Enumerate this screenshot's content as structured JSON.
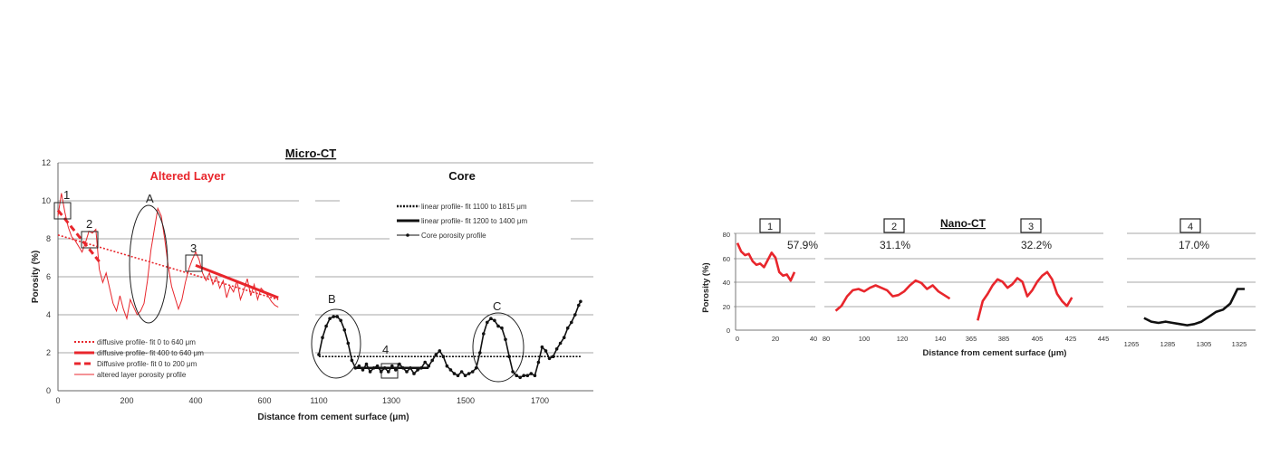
{
  "micro_ct": {
    "title": "Micro-CT",
    "xlabel": "Distance from cement surface (μm)",
    "ylabel": "Porosity (%)",
    "yticks": [
      "0",
      "2",
      "4",
      "6",
      "8",
      "10",
      "12"
    ],
    "altered_title": "Altered Layer",
    "core_title": "Core",
    "altered_xticks": [
      "0",
      "200",
      "400",
      "600"
    ],
    "core_xticks": [
      "1100",
      "1300",
      "1500",
      "1700"
    ],
    "altered_legend": [
      "diffusive profile- fit 0 to 640 μm",
      "diffusive profile- fit 400 to 640 μm",
      "Diffusive profile- fit 0 to 200 μm",
      "altered layer porosity profile"
    ],
    "core_legend": [
      "linear profile- fit 1100 to 1815 μm",
      "linear profile- fit 1200 to 1400 μm",
      "Core porosity profile"
    ],
    "annotations": [
      "1",
      "2",
      "3",
      "A",
      "B",
      "4",
      "C"
    ]
  },
  "nano_ct": {
    "title": "Nano-CT",
    "xlabel": "Distance from cement surface (μm)",
    "ylabel": "Porosity (%)",
    "yticks": [
      "0",
      "20",
      "40",
      "60",
      "80"
    ],
    "panels": [
      {
        "label": "1",
        "value": "57.9%",
        "xticks": [
          "0",
          "20",
          "40"
        ]
      },
      {
        "label": "2",
        "value": "31.1%",
        "xticks": [
          "80",
          "100",
          "120",
          "140"
        ]
      },
      {
        "label": "3",
        "value": "32.2%",
        "xticks": [
          "365",
          "385",
          "405",
          "425",
          "445"
        ]
      },
      {
        "label": "4",
        "value": "17.0%",
        "xticks": [
          "1265",
          "1285",
          "1305",
          "1325"
        ]
      }
    ]
  },
  "colors": {
    "altered": "#e8262c",
    "core": "#111111",
    "grid": "#8a8a8a"
  },
  "chart_data": [
    {
      "type": "line",
      "title": "Micro-CT — Altered Layer",
      "xlabel": "Distance from cement surface (μm)",
      "ylabel": "Porosity (%)",
      "xlim": [
        0,
        700
      ],
      "ylim": [
        0,
        12
      ],
      "series": [
        {
          "name": "altered layer porosity profile",
          "color": "#e8262c",
          "x": [
            0,
            10,
            20,
            30,
            40,
            50,
            60,
            70,
            80,
            90,
            100,
            110,
            120,
            130,
            140,
            150,
            160,
            170,
            180,
            190,
            200,
            210,
            220,
            230,
            240,
            250,
            260,
            270,
            280,
            290,
            300,
            310,
            320,
            330,
            340,
            350,
            360,
            370,
            380,
            390,
            400,
            410,
            420,
            430,
            440,
            450,
            460,
            470,
            480,
            490,
            500,
            510,
            520,
            530,
            540,
            550,
            560,
            570,
            580,
            590,
            600,
            610,
            620,
            630,
            640
          ],
          "y": [
            9.2,
            10.4,
            9.4,
            8.6,
            8.1,
            7.9,
            7.6,
            7.3,
            7.8,
            8.4,
            8.3,
            8.5,
            6.4,
            5.7,
            6.2,
            5.4,
            4.6,
            4.2,
            5.0,
            4.3,
            3.8,
            4.8,
            4.4,
            4.0,
            4.2,
            4.6,
            5.8,
            7.4,
            8.5,
            9.6,
            9.2,
            8.0,
            6.6,
            5.5,
            4.9,
            4.3,
            4.8,
            5.7,
            6.4,
            6.9,
            7.3,
            6.9,
            6.2,
            5.8,
            6.2,
            5.6,
            6.0,
            5.4,
            5.8,
            4.9,
            5.5,
            5.2,
            5.8,
            4.8,
            5.3,
            5.9,
            5.0,
            5.6,
            4.8,
            5.4,
            5.2,
            5.0,
            4.7,
            4.5,
            4.4
          ]
        },
        {
          "name": "diffusive profile- fit 0 to 640 μm",
          "color": "#e8262c",
          "x": [
            0,
            640
          ],
          "y": [
            8.2,
            4.8
          ]
        },
        {
          "name": "diffusive profile- fit 400 to 640 μm",
          "color": "#e8262c",
          "x": [
            400,
            640
          ],
          "y": [
            6.6,
            4.9
          ]
        },
        {
          "name": "Diffusive profile- fit 0 to 200 μm",
          "color": "#e8262c",
          "x": [
            0,
            120
          ],
          "y": [
            9.5,
            6.8
          ]
        }
      ]
    },
    {
      "type": "line",
      "title": "Micro-CT — Core",
      "xlabel": "Distance from cement surface (μm)",
      "ylabel": "Porosity (%)",
      "xlim": [
        1100,
        1850
      ],
      "ylim": [
        0,
        12
      ],
      "series": [
        {
          "name": "Core porosity profile",
          "color": "#111111",
          "x": [
            1100,
            1110,
            1120,
            1130,
            1140,
            1150,
            1160,
            1170,
            1180,
            1190,
            1200,
            1210,
            1220,
            1230,
            1240,
            1250,
            1260,
            1270,
            1280,
            1290,
            1300,
            1310,
            1320,
            1330,
            1340,
            1350,
            1360,
            1370,
            1380,
            1390,
            1400,
            1410,
            1420,
            1430,
            1440,
            1450,
            1460,
            1470,
            1480,
            1490,
            1500,
            1510,
            1520,
            1530,
            1540,
            1550,
            1560,
            1570,
            1580,
            1590,
            1600,
            1610,
            1620,
            1630,
            1640,
            1650,
            1660,
            1670,
            1680,
            1690,
            1700,
            1710,
            1720,
            1730,
            1740,
            1750,
            1760,
            1770,
            1780,
            1790,
            1800,
            1810,
            1815
          ],
          "y": [
            1.9,
            2.8,
            3.4,
            3.8,
            3.9,
            3.9,
            3.7,
            3.2,
            2.5,
            1.6,
            1.2,
            1.3,
            1.1,
            1.4,
            1.0,
            1.2,
            1.3,
            1.0,
            1.2,
            1.0,
            1.3,
            1.1,
            1.4,
            1.2,
            1.0,
            1.2,
            0.9,
            1.1,
            1.2,
            1.5,
            1.3,
            1.6,
            1.9,
            2.1,
            1.8,
            1.3,
            1.1,
            0.9,
            0.8,
            1.0,
            0.8,
            0.9,
            1.0,
            1.2,
            2.0,
            3.0,
            3.6,
            3.8,
            3.7,
            3.4,
            3.3,
            2.7,
            1.8,
            1.0,
            0.8,
            0.7,
            0.8,
            0.8,
            0.9,
            0.8,
            1.5,
            2.3,
            2.1,
            1.7,
            1.8,
            2.2,
            2.5,
            2.8,
            3.3,
            3.6,
            4.0,
            4.5,
            4.7
          ]
        },
        {
          "name": "linear profile- fit 1100 to 1815 μm",
          "color": "#111111",
          "x": [
            1100,
            1815
          ],
          "y": [
            1.8,
            1.8
          ]
        },
        {
          "name": "linear profile- fit 1200 to 1400 μm",
          "color": "#111111",
          "x": [
            1200,
            1400
          ],
          "y": [
            1.2,
            1.2
          ]
        }
      ]
    },
    {
      "type": "line",
      "title": "Nano-CT 1",
      "ylabel": "Porosity (%)",
      "xlim": [
        0,
        40
      ],
      "ylim": [
        0,
        80
      ],
      "series": [
        {
          "color": "#e8262c",
          "x": [
            0,
            2,
            4,
            6,
            8,
            10,
            12,
            14,
            16,
            18,
            20,
            22,
            24,
            26,
            28,
            30
          ],
          "y": [
            72,
            65,
            62,
            63,
            57,
            54,
            55,
            52,
            58,
            64,
            60,
            48,
            45,
            46,
            41,
            48
          ]
        }
      ]
    },
    {
      "type": "line",
      "title": "Nano-CT 2",
      "xlim": [
        80,
        150
      ],
      "ylim": [
        0,
        80
      ],
      "series": [
        {
          "color": "#e8262c",
          "x": [
            85,
            88,
            91,
            94,
            97,
            100,
            103,
            106,
            109,
            112,
            115,
            118,
            121,
            124,
            127,
            130,
            133,
            136,
            139,
            142,
            145
          ],
          "y": [
            16,
            20,
            28,
            33,
            34,
            32,
            35,
            37,
            35,
            33,
            28,
            29,
            32,
            37,
            41,
            39,
            34,
            37,
            32,
            29,
            26
          ]
        }
      ]
    },
    {
      "type": "line",
      "title": "Nano-CT 3",
      "xlim": [
        365,
        445
      ],
      "ylim": [
        0,
        80
      ],
      "series": [
        {
          "color": "#e8262c",
          "x": [
            369,
            372,
            375,
            378,
            381,
            384,
            387,
            390,
            393,
            396,
            399,
            402,
            405,
            408,
            411,
            414,
            417,
            420,
            423,
            426
          ],
          "y": [
            8,
            24,
            30,
            37,
            42,
            40,
            35,
            38,
            43,
            40,
            28,
            33,
            40,
            45,
            48,
            42,
            30,
            24,
            20,
            27
          ]
        }
      ]
    },
    {
      "type": "line",
      "title": "Nano-CT 4",
      "xlim": [
        1265,
        1330
      ],
      "ylim": [
        0,
        80
      ],
      "series": [
        {
          "color": "#111111",
          "x": [
            1272,
            1276,
            1280,
            1284,
            1288,
            1292,
            1296,
            1300,
            1304,
            1308,
            1312,
            1316,
            1320,
            1324,
            1328
          ],
          "y": [
            10,
            7,
            6,
            7,
            6,
            5,
            4,
            5,
            7,
            11,
            15,
            17,
            22,
            34,
            34
          ]
        }
      ]
    }
  ]
}
